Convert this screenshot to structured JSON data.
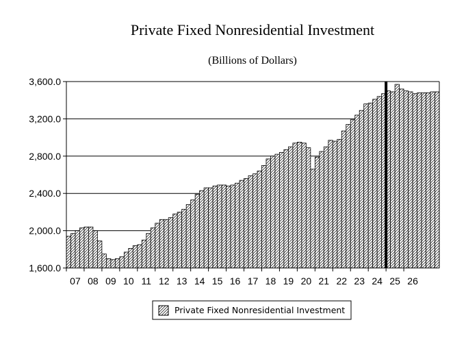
{
  "chart_data": {
    "type": "bar",
    "title": "Private Fixed Nonresidential Investment",
    "subtitle": "(Billions of Dollars)",
    "xlabel": "",
    "ylabel": "",
    "ylim": [
      1600,
      3600
    ],
    "y_ticks": [
      "1,600.0",
      "2,000.0",
      "2,400.0",
      "2,800.0",
      "3,200.0",
      "3,600.0"
    ],
    "y_tick_values": [
      1600,
      2000,
      2400,
      2800,
      3200,
      3600
    ],
    "year_labels": [
      "07",
      "08",
      "09",
      "10",
      "11",
      "12",
      "13",
      "14",
      "15",
      "16",
      "17",
      "18",
      "19",
      "20",
      "21",
      "22",
      "23",
      "24",
      "25",
      "26"
    ],
    "grid": true,
    "legend": {
      "position": "bottom-center",
      "entries": [
        "Private Fixed Nonresidential Investment"
      ]
    },
    "forecast_marker_after_quarter_index": 71,
    "series": [
      {
        "name": "Private Fixed Nonresidential Investment",
        "frequency": "quarterly",
        "start": "2007Q1",
        "values": [
          1940,
          1970,
          2000,
          2030,
          2040,
          2040,
          2000,
          1890,
          1750,
          1700,
          1690,
          1700,
          1720,
          1770,
          1810,
          1840,
          1850,
          1900,
          1970,
          2030,
          2080,
          2120,
          2120,
          2140,
          2180,
          2200,
          2230,
          2280,
          2330,
          2390,
          2430,
          2460,
          2460,
          2480,
          2490,
          2490,
          2480,
          2490,
          2510,
          2540,
          2560,
          2590,
          2610,
          2640,
          2700,
          2770,
          2800,
          2820,
          2840,
          2870,
          2900,
          2940,
          2950,
          2940,
          2890,
          2660,
          2790,
          2850,
          2900,
          2970,
          2960,
          2980,
          3070,
          3140,
          3190,
          3240,
          3290,
          3360,
          3370,
          3410,
          3440,
          3470,
          3500,
          3490,
          3570,
          3520,
          3500,
          3490,
          3470,
          3480,
          3480,
          3480,
          3490,
          3490
        ]
      }
    ]
  }
}
